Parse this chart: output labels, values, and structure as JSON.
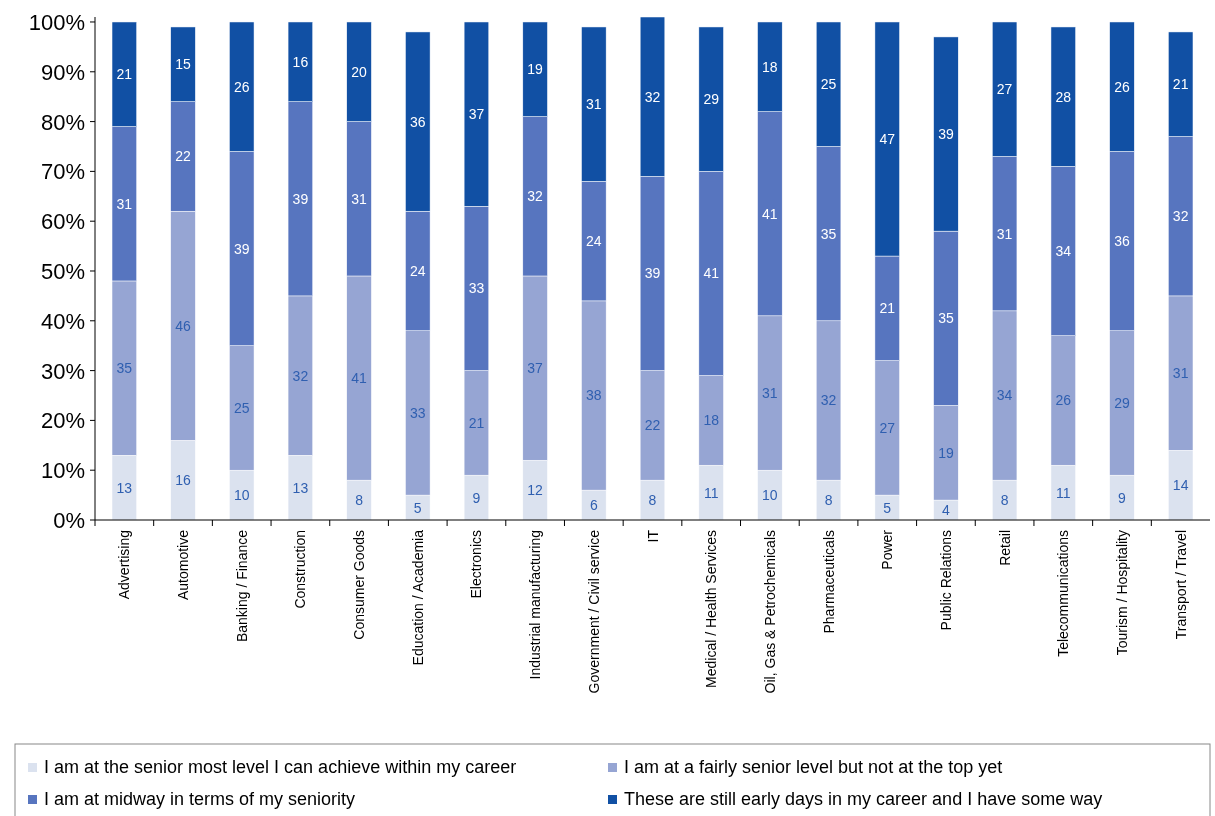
{
  "chart_data": {
    "type": "bar",
    "stacked": true,
    "categories": [
      "Advertising",
      "Automotive",
      "Banking / Finance",
      "Construction",
      "Consumer Goods",
      "Education / Academia",
      "Electronics",
      "Industrial manufacturing",
      "Government / Civil service",
      "IT",
      "Medical / Health Services",
      "Oil, Gas & Petrochemicals",
      "Pharmaceuticals",
      "Power",
      "Public Relations",
      "Retail",
      "Telecommunications",
      "Tourism / Hospitality",
      "Transport / Travel"
    ],
    "series": [
      {
        "name": "I am at the senior most level I can achieve within my career",
        "color": "#dbe2ef",
        "values": [
          13,
          16,
          10,
          13,
          8,
          5,
          9,
          12,
          6,
          8,
          11,
          10,
          8,
          5,
          4,
          8,
          11,
          9,
          14
        ]
      },
      {
        "name": "I am at a fairly senior level but not at the top yet",
        "color": "#96a5d3",
        "values": [
          35,
          46,
          25,
          32,
          41,
          33,
          21,
          37,
          38,
          22,
          18,
          31,
          32,
          27,
          19,
          34,
          26,
          29,
          31
        ]
      },
      {
        "name": "I am at midway in terms of my seniority",
        "color": "#5775bf",
        "values": [
          31,
          22,
          39,
          39,
          31,
          24,
          33,
          32,
          24,
          39,
          41,
          41,
          35,
          21,
          35,
          31,
          34,
          36,
          32
        ]
      },
      {
        "name": "These are still early days in my career and I have some way",
        "color": "#1150a4",
        "values": [
          21,
          15,
          26,
          16,
          20,
          36,
          37,
          19,
          31,
          32,
          29,
          18,
          25,
          47,
          39,
          27,
          28,
          26,
          21
        ]
      }
    ],
    "ylim": [
      0,
      101
    ],
    "yticks": [
      {
        "value": 0,
        "label": "0%"
      },
      {
        "value": 10,
        "label": "10%"
      },
      {
        "value": 20,
        "label": "20%"
      },
      {
        "value": 30,
        "label": "30%"
      },
      {
        "value": 40,
        "label": "40%"
      },
      {
        "value": 50,
        "label": "50%"
      },
      {
        "value": 60,
        "label": "60%"
      },
      {
        "value": 70,
        "label": "70%"
      },
      {
        "value": 80,
        "label": "80%"
      },
      {
        "value": 90,
        "label": "90%"
      },
      {
        "value": 100,
        "label": "100%"
      }
    ],
    "data_labels": true,
    "grid": false,
    "legend": "bottom"
  }
}
